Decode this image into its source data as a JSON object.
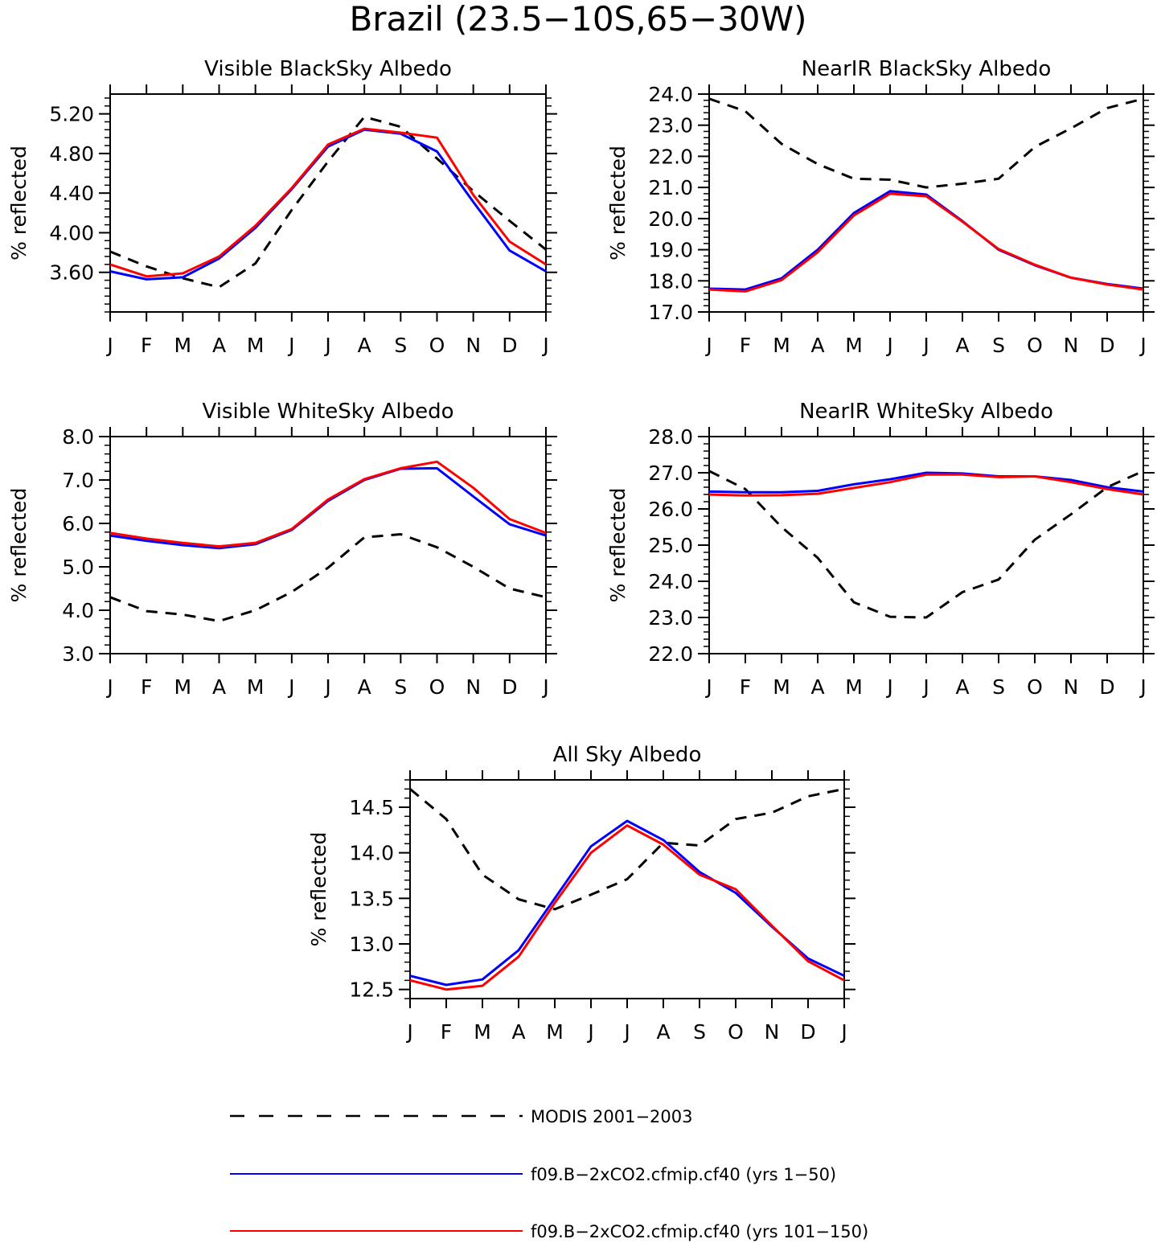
{
  "title": "Brazil (23.5−10S,65−30W)",
  "colors": {
    "modis": "#000000",
    "run1": "#0000ff",
    "run2": "#ff0000"
  },
  "legend": [
    {
      "label": "MODIS 2001−2003",
      "style": "dashed",
      "color": "#000000"
    },
    {
      "label": "f09.B−2xCO2.cfmip.cf40 (yrs 1−50)",
      "style": "solid",
      "color": "#0000ff"
    },
    {
      "label": "f09.B−2xCO2.cfmip.cf40 (yrs 101−150)",
      "style": "solid",
      "color": "#ff0000"
    }
  ],
  "chart_data": [
    {
      "type": "line",
      "title": "Visible BlackSky Albedo",
      "ylabel": "% reflected",
      "x": [
        "J",
        "F",
        "M",
        "A",
        "M",
        "J",
        "J",
        "A",
        "S",
        "O",
        "N",
        "D",
        "J"
      ],
      "ylim": [
        3.2,
        5.4
      ],
      "yticks": [
        "3.60",
        "4.00",
        "4.40",
        "4.80",
        "5.20"
      ],
      "ytick_values": [
        3.6,
        4.0,
        4.4,
        4.8,
        5.2
      ],
      "series": [
        {
          "name": "MODIS 2001−2003",
          "values": [
            3.81,
            3.66,
            3.54,
            3.45,
            3.69,
            4.23,
            4.72,
            5.17,
            5.07,
            4.75,
            4.42,
            4.12,
            3.83
          ]
        },
        {
          "name": "f09.B−2xCO2.cfmip.cf40 (yrs 1−50)",
          "values": [
            3.61,
            3.53,
            3.55,
            3.74,
            4.05,
            4.44,
            4.87,
            5.04,
            5.0,
            4.82,
            4.31,
            3.82,
            3.61
          ]
        },
        {
          "name": "f09.B−2xCO2.cfmip.cf40 (yrs 101−150)",
          "values": [
            3.68,
            3.56,
            3.59,
            3.76,
            4.07,
            4.45,
            4.89,
            5.05,
            5.01,
            4.96,
            4.38,
            3.91,
            3.68
          ]
        }
      ]
    },
    {
      "type": "line",
      "title": "NearIR BlackSky Albedo",
      "ylabel": "% reflected",
      "x": [
        "J",
        "F",
        "M",
        "A",
        "M",
        "J",
        "J",
        "A",
        "S",
        "O",
        "N",
        "D",
        "J"
      ],
      "ylim": [
        17.0,
        24.0
      ],
      "yticks": [
        "17.0",
        "18.0",
        "19.0",
        "20.0",
        "21.0",
        "22.0",
        "23.0",
        "24.0"
      ],
      "ytick_values": [
        17,
        18,
        19,
        20,
        21,
        22,
        23,
        24
      ],
      "series": [
        {
          "name": "MODIS 2001−2003",
          "values": [
            23.85,
            23.45,
            22.4,
            21.75,
            21.28,
            21.25,
            21.0,
            21.12,
            21.28,
            22.3,
            22.9,
            23.55,
            23.85
          ]
        },
        {
          "name": "f09.B−2xCO2.cfmip.cf40 (yrs 1−50)",
          "values": [
            17.75,
            17.72,
            18.08,
            19.0,
            20.18,
            20.88,
            20.77,
            19.92,
            19.0,
            18.5,
            18.1,
            17.9,
            17.75
          ]
        },
        {
          "name": "f09.B−2xCO2.cfmip.cf40 (yrs 101−150)",
          "values": [
            17.72,
            17.66,
            18.02,
            18.92,
            20.1,
            20.8,
            20.72,
            19.9,
            19.02,
            18.52,
            18.1,
            17.88,
            17.72
          ]
        }
      ]
    },
    {
      "type": "line",
      "title": "Visible WhiteSky Albedo",
      "ylabel": "% reflected",
      "x": [
        "J",
        "F",
        "M",
        "A",
        "M",
        "J",
        "J",
        "A",
        "S",
        "O",
        "N",
        "D",
        "J"
      ],
      "ylim": [
        3.0,
        8.0
      ],
      "yticks": [
        "3.0",
        "4.0",
        "5.0",
        "6.0",
        "7.0",
        "8.0"
      ],
      "ytick_values": [
        3,
        4,
        5,
        6,
        7,
        8
      ],
      "series": [
        {
          "name": "MODIS 2001−2003",
          "values": [
            4.3,
            3.98,
            3.9,
            3.75,
            4.0,
            4.42,
            4.98,
            5.68,
            5.75,
            5.45,
            5.0,
            4.5,
            4.3
          ]
        },
        {
          "name": "f09.B−2xCO2.cfmip.cf40 (yrs 1−50)",
          "values": [
            5.72,
            5.6,
            5.5,
            5.43,
            5.52,
            5.85,
            6.52,
            7.0,
            7.26,
            7.27,
            6.62,
            5.98,
            5.72
          ]
        },
        {
          "name": "f09.B−2xCO2.cfmip.cf40 (yrs 101−150)",
          "values": [
            5.78,
            5.65,
            5.55,
            5.47,
            5.55,
            5.87,
            6.55,
            7.02,
            7.27,
            7.42,
            6.82,
            6.1,
            5.78
          ]
        }
      ]
    },
    {
      "type": "line",
      "title": "NearIR WhiteSky Albedo",
      "ylabel": "% reflected",
      "x": [
        "J",
        "F",
        "M",
        "A",
        "M",
        "J",
        "J",
        "A",
        "S",
        "O",
        "N",
        "D",
        "J"
      ],
      "ylim": [
        22.0,
        28.0
      ],
      "yticks": [
        "22.0",
        "23.0",
        "24.0",
        "25.0",
        "26.0",
        "27.0",
        "28.0"
      ],
      "ytick_values": [
        22,
        23,
        24,
        25,
        26,
        27,
        28
      ],
      "series": [
        {
          "name": "MODIS 2001−2003",
          "values": [
            27.05,
            26.55,
            25.5,
            24.65,
            23.42,
            23.02,
            23.0,
            23.7,
            24.05,
            25.15,
            25.85,
            26.6,
            27.05
          ]
        },
        {
          "name": "f09.B−2xCO2.cfmip.cf40 (yrs 1−50)",
          "values": [
            26.48,
            26.46,
            26.46,
            26.5,
            26.68,
            26.82,
            27.0,
            26.98,
            26.9,
            26.9,
            26.8,
            26.6,
            26.48
          ]
        },
        {
          "name": "f09.B−2xCO2.cfmip.cf40 (yrs 101−150)",
          "values": [
            26.4,
            26.37,
            26.38,
            26.42,
            26.58,
            26.74,
            26.95,
            26.95,
            26.88,
            26.9,
            26.74,
            26.55,
            26.4
          ]
        }
      ]
    },
    {
      "type": "line",
      "title": "All Sky Albedo",
      "ylabel": "% reflected",
      "x": [
        "J",
        "F",
        "M",
        "A",
        "M",
        "J",
        "J",
        "A",
        "S",
        "O",
        "N",
        "D",
        "J"
      ],
      "ylim": [
        12.4,
        14.8
      ],
      "yticks": [
        "12.5",
        "13.0",
        "13.5",
        "14.0",
        "14.5"
      ],
      "ytick_values": [
        12.5,
        13.0,
        13.5,
        14.0,
        14.5
      ],
      "series": [
        {
          "name": "MODIS 2001−2003",
          "values": [
            14.7,
            14.37,
            13.76,
            13.49,
            13.38,
            13.54,
            13.71,
            14.11,
            14.08,
            14.37,
            14.44,
            14.62,
            14.7
          ]
        },
        {
          "name": "f09.B−2xCO2.cfmip.cf40 (yrs 1−50)",
          "values": [
            12.65,
            12.55,
            12.61,
            12.93,
            13.5,
            14.07,
            14.35,
            14.14,
            13.79,
            13.56,
            13.19,
            12.84,
            12.65
          ]
        },
        {
          "name": "f09.B−2xCO2.cfmip.cf40 (yrs 101−150)",
          "values": [
            12.6,
            12.5,
            12.54,
            12.86,
            13.45,
            14.0,
            14.3,
            14.09,
            13.76,
            13.6,
            13.2,
            12.81,
            12.6
          ]
        }
      ]
    }
  ]
}
